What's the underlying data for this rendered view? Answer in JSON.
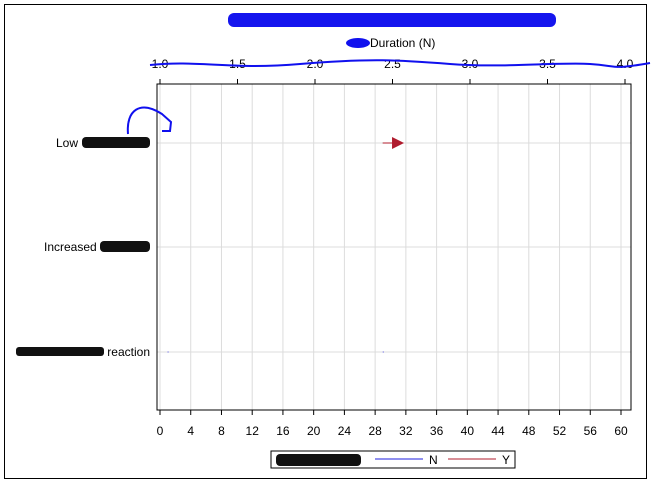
{
  "chart_data": {
    "type": "bar",
    "orientation": "horizontal",
    "title": "",
    "top_axis": {
      "label": "Duration (N)",
      "ticks": [
        "1.0",
        "1.5",
        "2.0",
        "2.5",
        "3.0",
        "3.5",
        "4.0"
      ],
      "range": [
        1.0,
        4.0
      ]
    },
    "bottom_axis": {
      "label": "",
      "ticks": [
        "0",
        "4",
        "8",
        "12",
        "16",
        "20",
        "24",
        "28",
        "32",
        "36",
        "40",
        "44",
        "48",
        "52",
        "56",
        "60"
      ],
      "range": [
        0,
        61
      ]
    },
    "categories": [
      "Low",
      "Increased",
      "reaction"
    ],
    "bars": [
      {
        "category": "Low",
        "start": 29,
        "end": 31.5,
        "series": "Y",
        "arrow": true
      },
      {
        "category": "reaction",
        "start": 1,
        "end": 1.1,
        "series": "N",
        "arrow": false
      },
      {
        "category": "reaction",
        "start": 29,
        "end": 29.1,
        "series": "N",
        "arrow": false
      }
    ],
    "legend": {
      "placement": "bottom",
      "entries": [
        {
          "name": "N",
          "color": "#1f1fdf"
        },
        {
          "name": "Y",
          "color": "#b01c2e"
        }
      ]
    },
    "grid": true,
    "redactions": [
      "title",
      "category labels partially",
      "legend title"
    ]
  }
}
